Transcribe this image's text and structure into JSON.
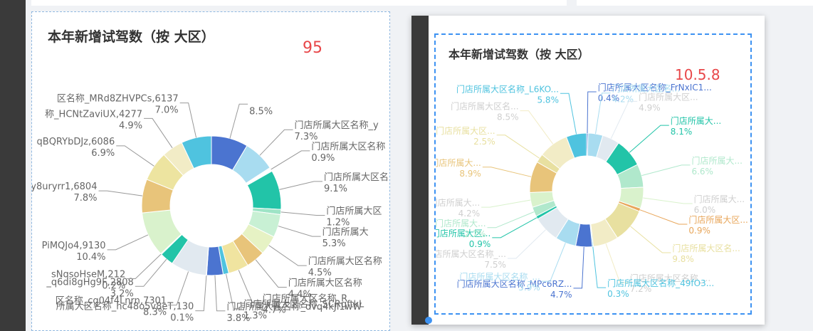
{
  "chart_data": [
    {
      "type": "pie",
      "title": "本年新增试驾数（按 大区）",
      "value_label": "95",
      "slices": [
        {
          "label": "",
          "pct": "8.5%",
          "value": 8.5,
          "color": "#4b74d0"
        },
        {
          "label": "门店所属大区名称_y",
          "pct": "7.3%",
          "value": 7.3,
          "color": "#a8dcf0"
        },
        {
          "label": "门店所属大区名称",
          "pct": "0.9%",
          "value": 0.9,
          "color": "#ffffff"
        },
        {
          "label": "门店所属大区名",
          "pct": "9.1%",
          "value": 9.1,
          "color": "#22c4a8"
        },
        {
          "label": "门店所属大区",
          "pct": "1.2%",
          "value": 1.2,
          "color": "#9ee4c6"
        },
        {
          "label": "门店所属大",
          "pct": "5.3%",
          "value": 5.3,
          "color": "#c8f0d4"
        },
        {
          "label": "门店所属大区名称",
          "pct": "4.5%",
          "value": 4.5,
          "color": "#e6f2c4"
        },
        {
          "label": "门店所属大区名称",
          "pct": "4.4%",
          "value": 4.4,
          "color": "#e8c47a"
        },
        {
          "label": "门店所属大区名称_R",
          "pct": "4.7%",
          "value": 4.7,
          "color": "#f0e4a0"
        },
        {
          "label": "门店所属大区名称_SCRqftkL",
          "pct": "1.3%",
          "value": 1.3,
          "color": "#4fc3df"
        },
        {
          "label": "门店所属大区名称_dvq4kJl1wW",
          "pct": "3.8%",
          "value": 3.8,
          "color": "#4b74d0"
        },
        {
          "label": "所属大区名称_hc48o5v8eT,130",
          "pct": "0.1%",
          "value": 0.1,
          "color": "#4b74d0"
        },
        {
          "label": "区名称_cg04f4Lnrn,7301",
          "pct": "8.3%",
          "value": 8.3,
          "color": "#e1e9f0"
        },
        {
          "label": "_q6di8gHg9F,2808",
          "pct": "3.2%",
          "value": 3.2,
          "color": "#22c4a8"
        },
        {
          "label": "sNqsoHseM,212",
          "pct": "0.2%",
          "value": 0.2,
          "color": "#9ee4c6"
        },
        {
          "label": "PiMQJo4,9130",
          "pct": "10.4%",
          "value": 10.4,
          "color": "#d9f2cc"
        },
        {
          "label": "py8uryrr1,6804",
          "pct": "7.8%",
          "value": 7.8,
          "color": "#e8c47a"
        },
        {
          "label": "qBQRYbDJz,6086",
          "pct": "6.9%",
          "value": 6.9,
          "color": "#ede4a0"
        },
        {
          "label": "称_HCNtZaviUX,4277",
          "pct": "4.9%",
          "value": 4.9,
          "color": "#f2ecc6"
        },
        {
          "label": "区名称_MRd8ZHVPCs,6137",
          "pct": "7.0%",
          "value": 7.0,
          "color": "#4fc3df"
        }
      ]
    },
    {
      "type": "pie",
      "title": "本年新增试驾数（按 大区）",
      "value_label": "10.5.8",
      "slices": [
        {
          "label": "门店所属大区名称_FrNxIC1...",
          "pct": "0.4%",
          "value": 0.4,
          "color": "#4b74d0"
        },
        {
          "label": "门店所属大区名...",
          "pct": "4.2%",
          "value": 4.2,
          "color": "#a8dcf0"
        },
        {
          "label": "门店所属大区...",
          "pct": "4.9%",
          "value": 4.9,
          "color": "#e1e9f0"
        },
        {
          "label": "门店所属大...",
          "pct": "8.1%",
          "value": 8.1,
          "color": "#22c4a8"
        },
        {
          "label": "门店所属大...",
          "pct": "6.6%",
          "value": 6.6,
          "color": "#b0e8cc"
        },
        {
          "label": "门店所属大...",
          "pct": "6.0%",
          "value": 6.0,
          "color": "#d9f2cc"
        },
        {
          "label": "门店所属大区...",
          "pct": "0.9%",
          "value": 0.9,
          "color": "#e8a65a"
        },
        {
          "label": "门店所属大区名...",
          "pct": "9.8%",
          "value": 9.8,
          "color": "#e8e0a0"
        },
        {
          "label": "门店所属大区名称_...",
          "pct": "7.2%",
          "value": 7.2,
          "color": "#f2ecc6"
        },
        {
          "label": "门店所属大区名称_49fO3...",
          "pct": "0.3%",
          "value": 0.3,
          "color": "#4fc3df"
        },
        {
          "label": "门店所属大区名称_MPc6RZ...",
          "pct": "4.7%",
          "value": 4.7,
          "color": "#4b74d0"
        },
        {
          "label": "门店所属大区名称_...",
          "pct": "5.9%",
          "value": 5.9,
          "color": "#a8dcf0"
        },
        {
          "label": "门店所属大区名称_...",
          "pct": "7.5%",
          "value": 7.5,
          "color": "#e1e9f0"
        },
        {
          "label": "门店所属大区...",
          "pct": "0.9%",
          "value": 0.9,
          "color": "#22c4a8"
        },
        {
          "label": "门店所属大...",
          "pct": "2.7%",
          "value": 2.7,
          "color": "#b0e8cc"
        },
        {
          "label": "门店所属大...",
          "pct": "4.2%",
          "value": 4.2,
          "color": "#d9f2cc"
        },
        {
          "label": "门店所属大...",
          "pct": "8.9%",
          "value": 8.9,
          "color": "#e8c47a"
        },
        {
          "label": "门店所属大区...",
          "pct": "2.5%",
          "value": 2.5,
          "color": "#e8e0a0"
        },
        {
          "label": "门店所属大区名...",
          "pct": "8.5%",
          "value": 8.5,
          "color": "#f2ecc6"
        },
        {
          "label": "门店所属大区名称_L6KO...",
          "pct": "5.8%",
          "value": 5.8,
          "color": "#4fc3df"
        }
      ]
    }
  ]
}
